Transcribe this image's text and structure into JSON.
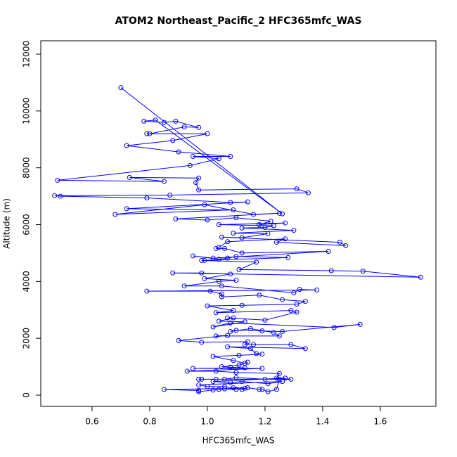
{
  "chart_data": {
    "type": "line",
    "title": "ATOM2 Northeast_Pacific_2 HFC365mfc_WAS",
    "x_label": "HFC365mfc_WAS",
    "y_label": "Altitude (m)",
    "xlim": [
      0.422,
      1.793
    ],
    "ylim": [
      -396,
      12470
    ],
    "xticks": [
      {
        "value": 0.6,
        "label": "0.6"
      },
      {
        "value": 0.8,
        "label": "0.8"
      },
      {
        "value": 1.0,
        "label": "1.0"
      },
      {
        "value": 1.2,
        "label": "1.2"
      },
      {
        "value": 1.4,
        "label": "1.4"
      },
      {
        "value": 1.6,
        "label": "1.6"
      }
    ],
    "yticks": [
      0,
      2000,
      4000,
      6000,
      8000,
      10000,
      12000
    ],
    "x": [
      0.7,
      1.26,
      0.82,
      0.78,
      0.85,
      0.89,
      0.97,
      0.92,
      0.8,
      0.79,
      1.0,
      0.88,
      0.72,
      0.9,
      1.08,
      0.95,
      1.04,
      0.94,
      0.48,
      0.85,
      0.73,
      0.97,
      0.96,
      0.97,
      1.31,
      1.35,
      0.87,
      0.47,
      0.49,
      0.79,
      1.08,
      1.14,
      0.72,
      1.09,
      0.68,
      0.99,
      1.16,
      1.25,
      0.89,
      1.0,
      1.1,
      1.22,
      1.18,
      1.27,
      1.04,
      1.23,
      1.2,
      1.12,
      1.3,
      1.09,
      1.21,
      1.12,
      1.05,
      1.46,
      1.48,
      1.24,
      1.27,
      1.07,
      1.04,
      1.03,
      1.06,
      1.12,
      1.42,
      1.02,
      0.95,
      1.04,
      1.07,
      1.1,
      1.28,
      0.99,
      0.98,
      1.17,
      1.11,
      1.43,
      1.54,
      1.74,
      0.88,
      0.98,
      1.08,
      0.99,
      1.1,
      1.04,
      0.92,
      1.05,
      1.3,
      1.32,
      1.38,
      0.79,
      1.01,
      1.05,
      1.05,
      1.18,
      1.26,
      1.34,
      1.31,
      1.12,
      1.0,
      1.09,
      1.03,
      1.29,
      1.31,
      1.2,
      1.07,
      1.09,
      1.04,
      1.13,
      1.02,
      1.08,
      1.44,
      1.53,
      1.26,
      1.19,
      1.1,
      1.08,
      1.15,
      1.23,
      1.25,
      1.03,
      1.07,
      0.9,
      0.98,
      1.14,
      1.13,
      1.16,
      1.29,
      1.34,
      1.07,
      1.15,
      1.17,
      1.19,
      1.11,
      1.02,
      1.09,
      1.13,
      1.14,
      1.11,
      1.05,
      1.08,
      1.13,
      0.95,
      1.19,
      0.93,
      1.03,
      1.1,
      1.25,
      1.24,
      1.29,
      0.97,
      0.98,
      1.03,
      1.06,
      1.1,
      1.2,
      1.27,
      1.02,
      1.08,
      1.12,
      1.21,
      1.26,
      0.97,
      1.0,
      1.06,
      1.09,
      1.13,
      0.85,
      0.97,
      0.97,
      1.02,
      1.04,
      1.06,
      1.1,
      1.12,
      1.14,
      1.18,
      1.19,
      1.21,
      1.24,
      1.25
    ],
    "series": [
      {
        "name": "HFC365mfc_WAS",
        "color": "#0000ff",
        "values": [
          10820,
          6380,
          9680,
          9640,
          9600,
          9640,
          9420,
          9440,
          9200,
          9200,
          9200,
          8960,
          8780,
          8560,
          8400,
          8400,
          8320,
          8080,
          7560,
          7520,
          7660,
          7640,
          7480,
          7220,
          7260,
          7120,
          7040,
          7020,
          7000,
          6940,
          6780,
          6800,
          6560,
          6520,
          6360,
          6700,
          6360,
          6400,
          6200,
          6160,
          6240,
          6120,
          6000,
          6060,
          6000,
          5960,
          5900,
          5880,
          5800,
          5700,
          5680,
          5540,
          5560,
          5380,
          5260,
          5380,
          5500,
          5400,
          5200,
          5160,
          5160,
          5000,
          5060,
          4820,
          4900,
          4780,
          4820,
          4880,
          4840,
          4740,
          4740,
          4680,
          4420,
          4380,
          4360,
          4150,
          4300,
          4300,
          4260,
          4100,
          4040,
          4000,
          3840,
          3840,
          3600,
          3720,
          3700,
          3660,
          3660,
          3560,
          3460,
          3520,
          3360,
          3300,
          3200,
          3160,
          3140,
          2980,
          2900,
          2980,
          2920,
          2640,
          2720,
          2720,
          2600,
          2580,
          2400,
          2540,
          2380,
          2490,
          2240,
          2260,
          2280,
          2240,
          2340,
          2200,
          2080,
          2080,
          2100,
          1920,
          1860,
          1880,
          1780,
          1780,
          1780,
          1640,
          1700,
          1640,
          1460,
          1440,
          1400,
          1360,
          1220,
          1120,
          1160,
          1060,
          1000,
          980,
          960,
          940,
          940,
          840,
          840,
          800,
          760,
          600,
          560,
          560,
          560,
          560,
          560,
          620,
          560,
          600,
          480,
          440,
          480,
          400,
          480,
          360,
          300,
          300,
          260,
          240,
          200,
          160,
          120,
          180,
          200,
          220,
          200,
          200,
          260,
          200,
          200,
          120,
          200,
          560
        ]
      }
    ]
  }
}
